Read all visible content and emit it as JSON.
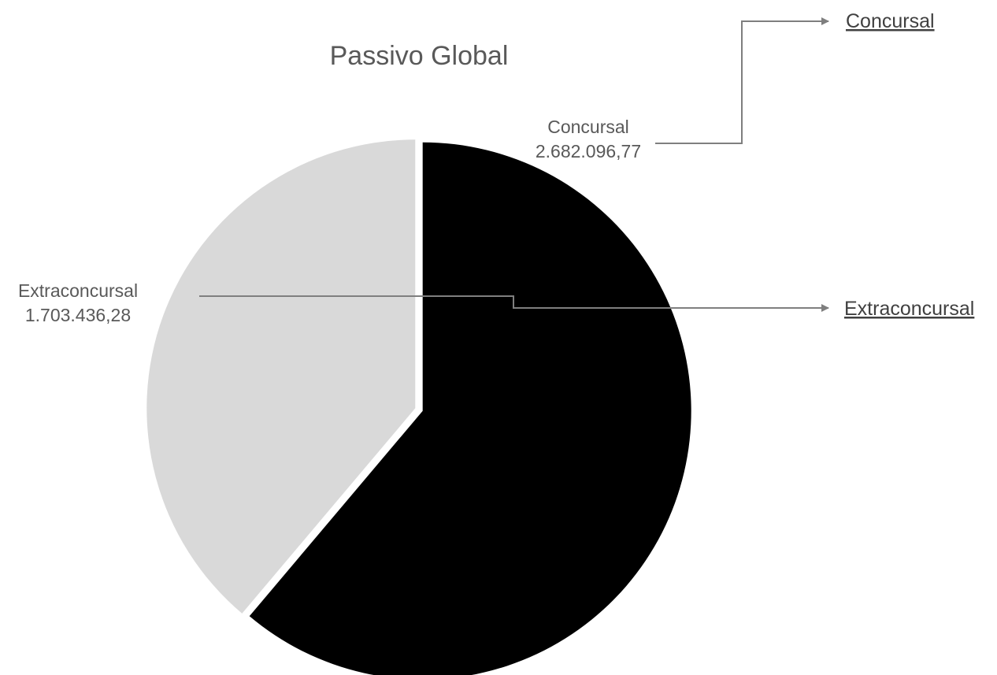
{
  "chart_data": {
    "type": "pie",
    "title": "Passivo Global",
    "slices": [
      {
        "name": "Concursal",
        "value": 2682096.77,
        "value_label": "2.682.096,77",
        "color": "#000000"
      },
      {
        "name": "Extraconcursal",
        "value": 1703436.28,
        "value_label": "1.703.436,28",
        "color": "#d9d9d9"
      }
    ],
    "legend": "none"
  },
  "links": [
    {
      "label": "Concursal"
    },
    {
      "label": "Extraconcursal"
    }
  ],
  "colors": {
    "text": "#595959",
    "connector": "#7f7f7f"
  }
}
